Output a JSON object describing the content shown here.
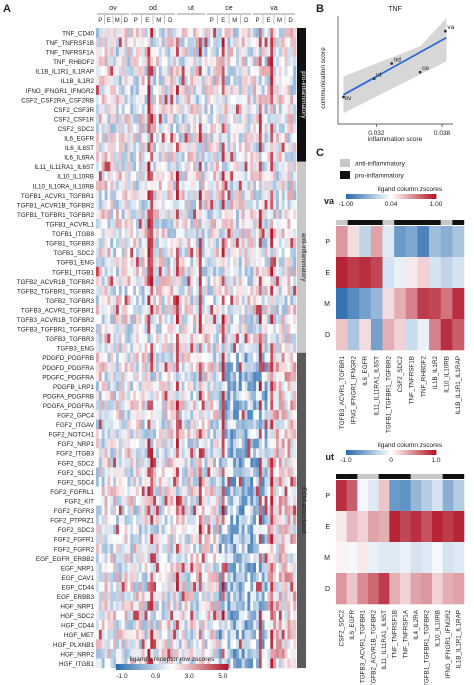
{
  "panels": {
    "a": {
      "label": "A"
    },
    "b": {
      "label": "B"
    },
    "c": {
      "label": "C"
    }
  },
  "colors": {
    "blue": "#2c6db0",
    "red": "#b2182b",
    "white": "#ffffff",
    "pro": "#111111",
    "anti": "#c8c8c8",
    "ecm": "#5a5a5a",
    "line": "#2f6bd6"
  },
  "chart_data": [
    {
      "type": "heatmap",
      "panel": "A",
      "column_groups": [
        {
          "name": "ov",
          "subgroups": [
            "P",
            "E",
            "M",
            "D"
          ]
        },
        {
          "name": "od",
          "subgroups": [
            "P",
            "E",
            "M",
            "D"
          ]
        },
        {
          "name": "ut",
          "subgroups": []
        },
        {
          "name": "ce",
          "subgroups": [
            "P",
            "E",
            "M",
            "D"
          ]
        },
        {
          "name": "va",
          "subgroups": [
            "P",
            "E",
            "M",
            "D"
          ]
        }
      ],
      "rows": [
        "TNF_CD40",
        "TNF_TNFRSF1B",
        "TNF_TNFRSF1A",
        "TNF_RHBDF2",
        "IL1B_IL1R1_IL1RAP",
        "IL1B_IL1R2",
        "IFNG_IFNGR1_IFNGR2",
        "CSF2_CSF2RA_CSF2RB",
        "CSF2_CSF3R",
        "CSF2_CSF1R",
        "CSF2_SDC2",
        "IL6_EGFR",
        "IL6_IL6ST",
        "IL6_IL6RA",
        "IL11_IL11RA1_IL6ST",
        "IL10_IL10RB",
        "IL10_IL10RA_IL10RB",
        "TGFB1_ACVR1_TGFBR1",
        "TGFB1_ACVR1B_TGFBR2",
        "TGFB1_TGFBR1_TGFBR2",
        "TGFB1_ACVRL1",
        "TGFB1_ITGB8",
        "TGFB1_TGFBR3",
        "TGFB1_SDC2",
        "TGFB1_ENG",
        "TGFB1_ITGB1",
        "TGFB2_ACVR1B_TGFBR2",
        "TGFB2_TGFBR1_TGFBR2",
        "TGFB2_TGFBR3",
        "TGFB3_ACVR1_TGFBR1",
        "TGFB3_ACVR1B_TGFBR2",
        "TGFB3_TGFBR1_TGFBR2",
        "TGFB3_TGFBR3",
        "TGFB3_ENG",
        "PDGFD_PDGFRB",
        "PDGFD_PDGFRA",
        "PDGFC_PDGFRA",
        "PDGFB_LRP1",
        "PDGFA_PDGFRB",
        "PDGFA_PDGFRA",
        "FGF2_GPC4",
        "FGF2_ITGAV",
        "FGF2_NOTCH1",
        "FGF2_NRP1",
        "FGF2_ITGB3",
        "FGF2_SDC2",
        "FGF2_SDC1",
        "FGF2_SDC4",
        "FGF2_FGFRL1",
        "FGF2_KIT",
        "FGF2_FGFR3",
        "FGF2_PTPRZ1",
        "FGF2_SDC3",
        "FGF2_FGFR1",
        "FGF2_FGFR2",
        "EGF_EGFR_ERBB2",
        "EGF_NRP1",
        "EGF_CAV1",
        "EGF_CD44",
        "EGF_ERBB3",
        "HGF_NRP1",
        "HGF_SDC2",
        "HGF_CD44",
        "HGF_MET",
        "HGF_PLXNB1",
        "HGF_NRP2",
        "HGF_ITGB1"
      ],
      "row_groups": [
        {
          "name": "pro-inflammatory",
          "from": 0,
          "to": 14
        },
        {
          "name": "anti-inflammatory",
          "from": 14,
          "to": 34
        },
        {
          "name": "ECM-associated",
          "from": 34,
          "to": 67
        }
      ],
      "colorbar": {
        "title": "ligand x receptor row zscores",
        "ticks": [
          "-1.0",
          "0.9",
          "3.0",
          "5.0"
        ]
      }
    },
    {
      "type": "scatter",
      "panel": "B",
      "title": "TNF",
      "xlabel": "inflammation score",
      "ylabel": "communication score",
      "xticks": [
        "0.032",
        "0.038"
      ],
      "xlim": [
        0.0285,
        0.039
      ],
      "ylim": [
        0,
        1
      ],
      "points": [
        {
          "label": "ov",
          "x": 0.029,
          "y": 0.25
        },
        {
          "label": "ut",
          "x": 0.0318,
          "y": 0.42
        },
        {
          "label": "od",
          "x": 0.0334,
          "y": 0.56
        },
        {
          "label": "ce",
          "x": 0.036,
          "y": 0.48
        },
        {
          "label": "va",
          "x": 0.0383,
          "y": 0.86
        }
      ],
      "fit": {
        "x": [
          0.029,
          0.0384
        ],
        "y": [
          0.27,
          0.8
        ]
      }
    },
    {
      "type": "heatmap",
      "panel": "C-va",
      "title": "va",
      "colorbar": {
        "title": "ligand column zscores",
        "ticks": [
          "-1.00",
          "0.04",
          "1.00"
        ]
      },
      "rows": [
        "P",
        "E",
        "M",
        "D"
      ],
      "columns": [
        "TGFB3_ACVR1_TGFBR1",
        "IFNG_IFNGR1_IFNGR2",
        "IL6_EGFR",
        "IL11_IL11RA1_IL6ST",
        "TGFB1_TGFBR1_TGFBR2",
        "CSF2_SDC2",
        "TNF_TNFRSF1B",
        "TNF_RHBDF2",
        "IL1B_IL1R2",
        "IL10_IL10RB",
        "IL1B_IL1R1_IL1RAP"
      ],
      "column_class": [
        "anti",
        "pro",
        "pro",
        "pro",
        "anti",
        "pro",
        "pro",
        "pro",
        "pro",
        "anti",
        "pro"
      ],
      "values": [
        [
          0.45,
          0.15,
          -0.3,
          0.4,
          -0.15,
          -0.7,
          -0.6,
          -0.85,
          -0.45,
          -0.55,
          -0.4
        ],
        [
          0.95,
          0.85,
          0.9,
          0.8,
          -0.2,
          -0.1,
          0.1,
          0.2,
          -0.2,
          -0.3,
          -0.2
        ],
        [
          -0.95,
          -0.8,
          -0.65,
          -0.5,
          0.15,
          0.35,
          0.55,
          0.85,
          0.8,
          0.6,
          0.9
        ],
        [
          0.25,
          -0.4,
          0.15,
          -0.65,
          0.35,
          0.2,
          -0.25,
          -0.1,
          0.55,
          0.9,
          0.7
        ]
      ]
    },
    {
      "type": "heatmap",
      "panel": "C-ut",
      "title": "ut",
      "colorbar": {
        "title": "ligand column zscores",
        "ticks": [
          "-1.0",
          "0",
          "1.0"
        ]
      },
      "rows": [
        "P",
        "E",
        "M",
        "D"
      ],
      "columns": [
        "CSF2_SDC2",
        "IL6_EGFR",
        "TGFB3_ACVR1_TGFBR1",
        "TGFB2_ACVR1B_TGFBR2",
        "IL11_IL11RA1_IL6ST",
        "TNF_TNFRSF1B",
        "TNF_TNFRSF1A",
        "IL4_IL2RA",
        "TGFB1_TGFBR1_TGFBR2",
        "IL10_IL10RB",
        "IFNG_IFNGR1_IFNGR2",
        "IL1B_IL1R1_IL1RAP"
      ],
      "column_class": [
        "pro",
        "pro",
        "anti",
        "anti",
        "pro",
        "pro",
        "pro",
        "anti",
        "anti",
        "anti",
        "pro",
        "pro"
      ],
      "values": [
        [
          0.9,
          0.7,
          -0.05,
          -0.15,
          0.25,
          -0.7,
          -0.75,
          -0.5,
          -0.35,
          -0.2,
          -0.55,
          -0.35
        ],
        [
          0.1,
          0.3,
          0.2,
          0.4,
          0.35,
          0.95,
          0.8,
          0.9,
          0.75,
          0.95,
          0.85,
          0.95
        ],
        [
          0.05,
          -0.05,
          0.1,
          -0.1,
          -0.15,
          -0.15,
          -0.1,
          -0.2,
          -0.15,
          -0.05,
          -0.2,
          -0.15
        ],
        [
          0.45,
          0.25,
          0.5,
          0.65,
          0.85,
          0.35,
          0.2,
          0.4,
          0.45,
          0.2,
          0.35,
          0.4
        ]
      ]
    }
  ],
  "legend_c": [
    {
      "label": "anti-inflammatory",
      "color": "#c8c8c8"
    },
    {
      "label": "pro-inflammatory",
      "color": "#111111"
    }
  ]
}
